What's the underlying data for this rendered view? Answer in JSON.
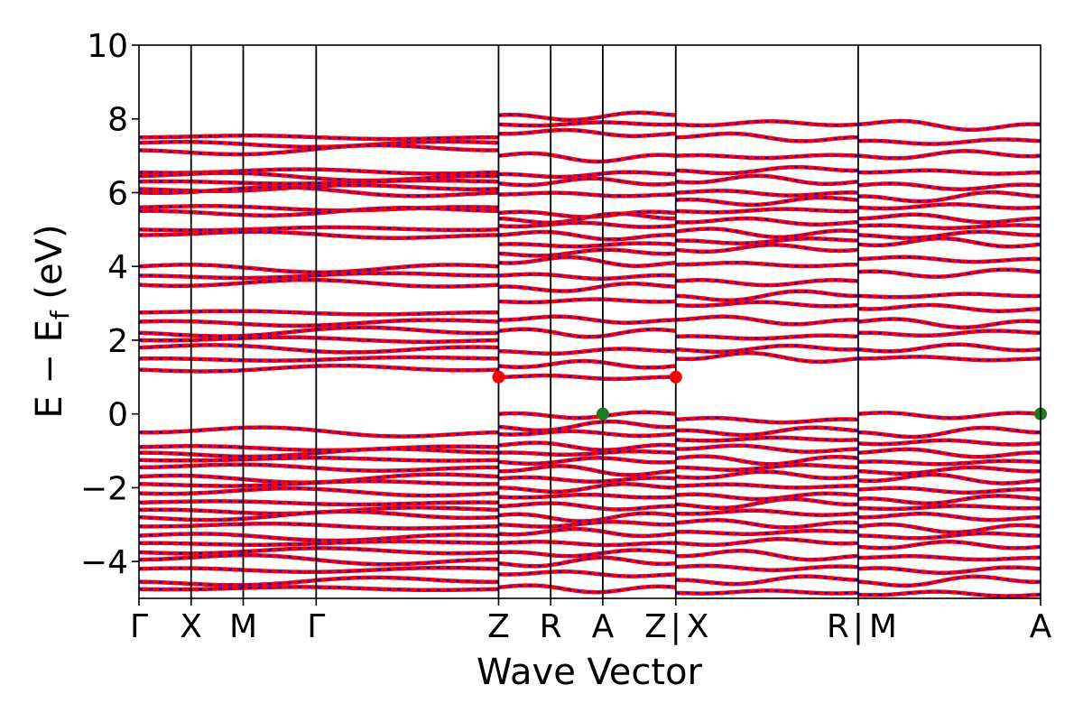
{
  "chart_data": {
    "type": "line",
    "title": "",
    "xlabel": "Wave Vector",
    "ylabel": "E − E_f (eV)",
    "ylabel_parts": {
      "main": "E − E",
      "sub": "f",
      "unit": " (eV)"
    },
    "ylim": [
      -5,
      10
    ],
    "yticks": [
      {
        "value": -4,
        "label": "−4"
      },
      {
        "value": -2,
        "label": "−2"
      },
      {
        "value": 0,
        "label": "0"
      },
      {
        "value": 2,
        "label": "2"
      },
      {
        "value": 4,
        "label": "4"
      },
      {
        "value": 6,
        "label": "6"
      },
      {
        "value": 8,
        "label": "8"
      },
      {
        "value": 10,
        "label": "10"
      }
    ],
    "grid": false,
    "kpath_labels": [
      "Γ",
      "X",
      "M",
      "Γ",
      "Z",
      "R",
      "A",
      "Z",
      "X",
      "R",
      "M",
      "A"
    ],
    "kpath_ticks": [
      {
        "label": "Γ",
        "k": 0.0
      },
      {
        "label": "X",
        "k": 0.5
      },
      {
        "label": "M",
        "k": 1.0
      },
      {
        "label": "Γ",
        "k": 1.7
      },
      {
        "label": "Z",
        "k": 3.45
      },
      {
        "label": "R",
        "k": 3.95
      },
      {
        "label": "A",
        "k": 4.45
      },
      {
        "label": "Z|X",
        "k": 5.15
      },
      {
        "label": "R|M",
        "k": 6.9
      },
      {
        "label": "A",
        "k": 8.65
      }
    ],
    "series": [
      {
        "color": "#ff0000",
        "style": "solid"
      },
      {
        "color": "#0000ff",
        "style": "dotted"
      }
    ],
    "markers": [
      {
        "k": 3.45,
        "energy": 1.0,
        "color": "#ff0000"
      },
      {
        "k": 5.15,
        "energy": 1.0,
        "color": "#ff0000"
      },
      {
        "k": 4.45,
        "energy": 0.0,
        "color": "#1f7a1f"
      },
      {
        "k": 8.65,
        "energy": 0.0,
        "color": "#1f7a1f"
      }
    ],
    "segments": [
      {
        "k_start": 0.0,
        "k_end": 3.45,
        "bands": [
          7.5,
          7.35,
          7.15,
          6.55,
          6.45,
          6.3,
          6.1,
          6.0,
          5.6,
          5.5,
          5.0,
          4.85,
          4.0,
          3.75,
          3.5,
          2.75,
          2.5,
          2.2,
          2.0,
          1.8,
          1.5,
          1.2,
          -0.5,
          -0.9,
          -1.05,
          -1.25,
          -1.45,
          -1.7,
          -1.9,
          -2.15,
          -2.4,
          -2.6,
          -2.8,
          -3.05,
          -3.3,
          -3.5,
          -3.75,
          -3.95,
          -4.2,
          -4.55,
          -4.75
        ]
      },
      {
        "k_start": 3.45,
        "k_end": 5.15,
        "bands": [
          8.1,
          7.85,
          7.6,
          7.0,
          6.5,
          6.25,
          5.95,
          5.45,
          5.3,
          5.1,
          4.85,
          4.6,
          4.35,
          4.1,
          3.75,
          3.45,
          3.05,
          2.55,
          2.25,
          1.7,
          1.3,
          1.0,
          0.0,
          -0.35,
          -0.55,
          -0.85,
          -1.05,
          -1.3,
          -1.55,
          -1.75,
          -2.0,
          -2.25,
          -2.5,
          -2.75,
          -3.0,
          -3.25,
          -3.5,
          -3.75,
          -4.05,
          -4.35,
          -4.7
        ]
      },
      {
        "k_start": 5.15,
        "k_end": 6.9,
        "bands": [
          7.85,
          7.5,
          7.0,
          6.6,
          6.3,
          6.0,
          5.8,
          5.5,
          5.2,
          4.95,
          4.7,
          4.45,
          4.05,
          3.6,
          3.2,
          2.95,
          2.55,
          2.1,
          1.75,
          1.5,
          -0.15,
          -0.45,
          -0.7,
          -0.95,
          -1.2,
          -1.45,
          -1.7,
          -1.95,
          -2.2,
          -2.45,
          -2.7,
          -2.95,
          -3.2,
          -3.5,
          -3.85,
          -4.15,
          -4.5,
          -4.85
        ]
      },
      {
        "k_start": 6.9,
        "k_end": 8.65,
        "bands": [
          7.85,
          7.4,
          7.0,
          6.55,
          6.2,
          5.9,
          5.6,
          5.3,
          5.1,
          4.85,
          4.6,
          4.2,
          3.85,
          3.2,
          2.85,
          2.5,
          2.2,
          1.75,
          1.5,
          0.0,
          -0.5,
          -0.8,
          -1.05,
          -1.3,
          -1.55,
          -1.8,
          -2.05,
          -2.3,
          -2.55,
          -2.8,
          -3.05,
          -3.3,
          -3.6,
          -3.9,
          -4.2,
          -4.55,
          -4.9
        ]
      }
    ]
  }
}
